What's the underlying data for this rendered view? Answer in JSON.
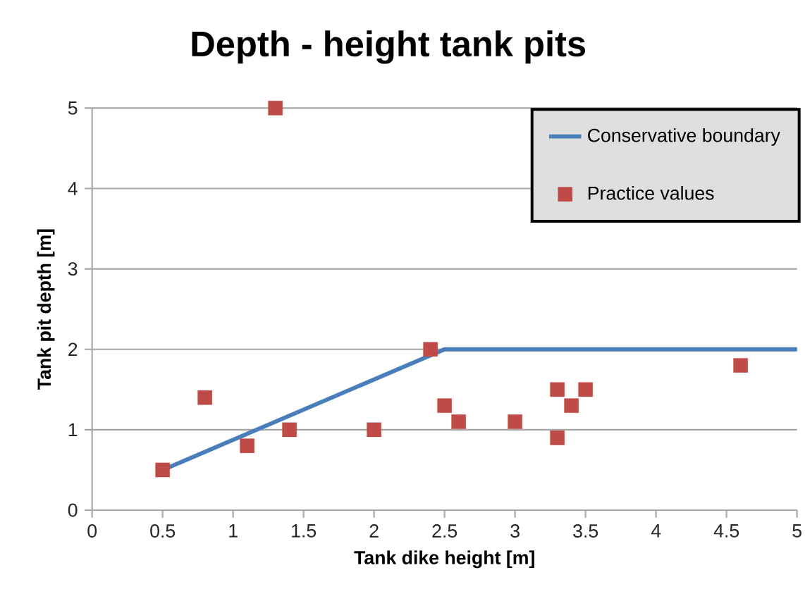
{
  "chart_data": {
    "type": "scatter",
    "title": "Depth - height tank pits",
    "xlabel": "Tank dike height [m]",
    "ylabel": "Tank pit depth [m]",
    "series": [
      {
        "name": "Conservative boundary",
        "type": "line",
        "color": "#4a7ebb",
        "marker": "none",
        "line_style": "solid",
        "x": [
          0.5,
          2.5,
          5
        ],
        "values": [
          0.5,
          2,
          2
        ]
      },
      {
        "name": "Practice values",
        "color": "#be4b48",
        "marker": "square",
        "x": [
          0.5,
          0.8,
          1.1,
          1.3,
          1.4,
          2,
          2.4,
          2.5,
          2.6,
          3,
          3.3,
          3.3,
          3.4,
          3.5,
          4.6
        ],
        "values": [
          0.5,
          1.4,
          0.8,
          5,
          1.0,
          1.0,
          2.0,
          1.3,
          1.1,
          1.1,
          1.5,
          0.9,
          1.3,
          1.5,
          1.8
        ]
      }
    ],
    "xlim": [
      0,
      5
    ],
    "ylim": [
      0,
      5
    ],
    "xticks": [
      0,
      0.5,
      1,
      1.5,
      2,
      2.5,
      3,
      3.5,
      4,
      4.5,
      5
    ],
    "yticks": [
      0,
      1,
      2,
      3,
      4,
      5
    ],
    "grid": "y",
    "legend": "top right"
  }
}
